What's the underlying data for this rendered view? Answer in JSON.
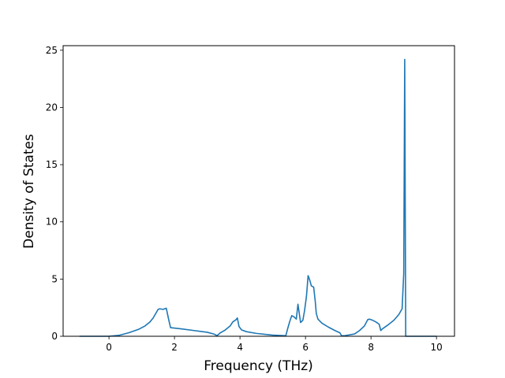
{
  "chart_data": {
    "type": "line",
    "title": "",
    "xlabel": "Frequency (THz)",
    "ylabel": "Density of States",
    "xlim": [
      -1.4,
      10.55
    ],
    "ylim": [
      0,
      25.4
    ],
    "xticks": [
      0,
      2,
      4,
      6,
      8,
      10
    ],
    "yticks": [
      0,
      5,
      10,
      15,
      20,
      25
    ],
    "grid": false,
    "legend": "none",
    "series": [
      {
        "color": "#1f77b4",
        "x": [
          -0.9,
          -0.5,
          0.0,
          0.3,
          0.6,
          0.9,
          1.1,
          1.25,
          1.35,
          1.45,
          1.5,
          1.55,
          1.65,
          1.75,
          1.82,
          1.88,
          2.2,
          2.6,
          3.0,
          3.2,
          3.3,
          3.4,
          3.55,
          3.7,
          3.78,
          3.88,
          3.92,
          3.97,
          4.05,
          4.2,
          4.5,
          5.0,
          5.4,
          5.45,
          5.52,
          5.58,
          5.65,
          5.72,
          5.77,
          5.85,
          5.92,
          5.97,
          6.03,
          6.08,
          6.12,
          6.18,
          6.25,
          6.3,
          6.33,
          6.38,
          6.5,
          6.7,
          6.9,
          7.05,
          7.1,
          7.2,
          7.5,
          7.65,
          7.8,
          7.9,
          7.95,
          8.05,
          8.15,
          8.25,
          8.3,
          8.35,
          8.5,
          8.7,
          8.85,
          8.95,
          9.0,
          9.03,
          9.06,
          9.08,
          9.1,
          9.5,
          10.0
        ],
        "y": [
          0.0,
          0.0,
          0.0,
          0.08,
          0.3,
          0.6,
          0.9,
          1.25,
          1.6,
          2.1,
          2.35,
          2.4,
          2.35,
          2.45,
          1.5,
          0.75,
          0.65,
          0.5,
          0.35,
          0.2,
          0.05,
          0.3,
          0.55,
          0.9,
          1.25,
          1.45,
          1.6,
          0.85,
          0.55,
          0.4,
          0.25,
          0.1,
          0.05,
          0.6,
          1.3,
          1.8,
          1.7,
          1.5,
          2.8,
          1.2,
          1.4,
          2.2,
          3.5,
          5.3,
          5.0,
          4.4,
          4.3,
          3.0,
          2.0,
          1.5,
          1.15,
          0.8,
          0.5,
          0.3,
          0.05,
          0.05,
          0.2,
          0.5,
          0.9,
          1.45,
          1.5,
          1.4,
          1.25,
          1.05,
          0.5,
          0.65,
          0.95,
          1.4,
          1.9,
          2.4,
          5.5,
          24.2,
          0.0,
          0.0,
          0.0,
          0.0,
          0.0
        ]
      }
    ]
  }
}
